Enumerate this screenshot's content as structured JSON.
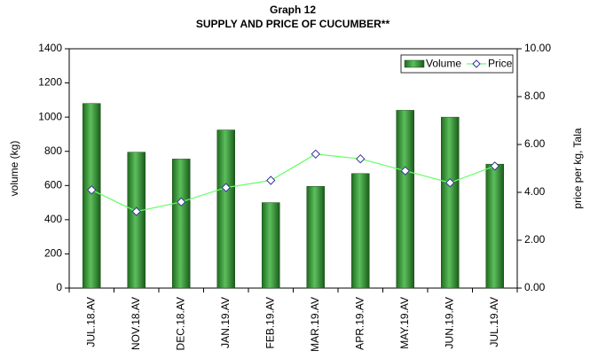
{
  "chart_data": {
    "type": "bar",
    "title": "Graph 12",
    "subtitle": "SUPPLY AND PRICE OF CUCUMBER**",
    "ylabel": "volume (kg)",
    "y2label": "price per kg, Tala",
    "categories": [
      "JUL.18.AV",
      "NOV.18.AV",
      "DEC.18.AV",
      "JAN.19.AV",
      "FEB.19.AV",
      "MAR.19.AV",
      "APR.19.AV",
      "MAY.19.AV",
      "JUN.19.AV",
      "JUL.19.AV"
    ],
    "series": [
      {
        "name": "Volume",
        "type": "bar",
        "color": "#339933",
        "values": [
          1080,
          795,
          755,
          925,
          500,
          595,
          670,
          1040,
          1000,
          725
        ]
      },
      {
        "name": "Price",
        "type": "line",
        "axis": "y2",
        "color": "#66ff66",
        "marker_edge": "#333399",
        "values": [
          4.1,
          3.2,
          3.6,
          4.2,
          4.5,
          5.6,
          5.4,
          4.9,
          4.4,
          5.1
        ]
      }
    ],
    "ylim": [
      0,
      1400
    ],
    "yticks": [
      0,
      200,
      400,
      600,
      800,
      1000,
      1200,
      1400
    ],
    "y2lim": [
      0,
      10
    ],
    "y2ticks": [
      {
        "value": 0,
        "label": "0.00"
      },
      {
        "value": 2,
        "label": "2.00"
      },
      {
        "value": 4,
        "label": "4.00"
      },
      {
        "value": 6,
        "label": "6.00"
      },
      {
        "value": 8,
        "label": "8.00"
      },
      {
        "value": 10,
        "label": "10.00"
      }
    ],
    "legend": "upper right"
  }
}
